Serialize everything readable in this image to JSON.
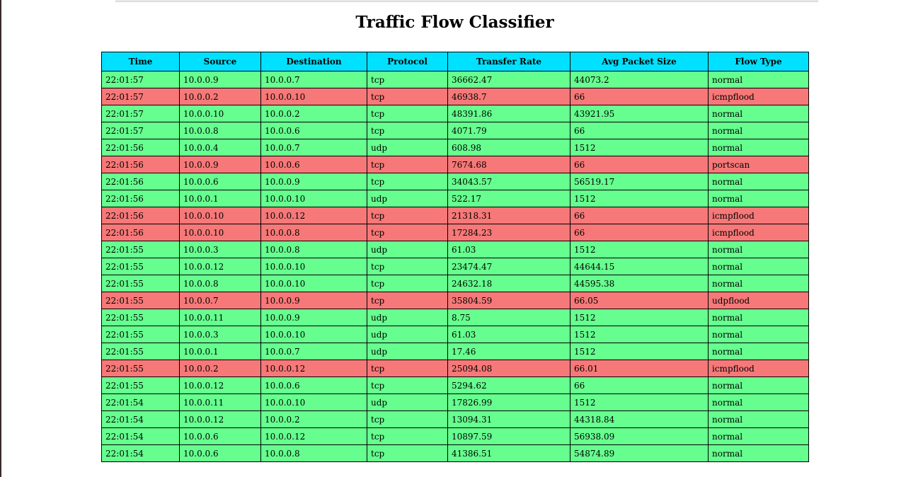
{
  "page": {
    "title": "Traffic Flow Classifier"
  },
  "colors": {
    "header": "#00e1ff",
    "normal_row": "#66ff8f",
    "attack_row": "#f67878"
  },
  "table": {
    "columns": [
      "Time",
      "Source",
      "Destination",
      "Protocol",
      "Transfer Rate",
      "Avg Packet Size",
      "Flow Type"
    ],
    "rows": [
      [
        "22:01:57",
        "10.0.0.9",
        "10.0.0.7",
        "tcp",
        "36662.47",
        "44073.2",
        "normal"
      ],
      [
        "22:01:57",
        "10.0.0.2",
        "10.0.0.10",
        "tcp",
        "46938.7",
        "66",
        "icmpflood"
      ],
      [
        "22:01:57",
        "10.0.0.10",
        "10.0.0.2",
        "tcp",
        "48391.86",
        "43921.95",
        "normal"
      ],
      [
        "22:01:57",
        "10.0.0.8",
        "10.0.0.6",
        "tcp",
        "4071.79",
        "66",
        "normal"
      ],
      [
        "22:01:56",
        "10.0.0.4",
        "10.0.0.7",
        "udp",
        "608.98",
        "1512",
        "normal"
      ],
      [
        "22:01:56",
        "10.0.0.9",
        "10.0.0.6",
        "tcp",
        "7674.68",
        "66",
        "portscan"
      ],
      [
        "22:01:56",
        "10.0.0.6",
        "10.0.0.9",
        "tcp",
        "34043.57",
        "56519.17",
        "normal"
      ],
      [
        "22:01:56",
        "10.0.0.1",
        "10.0.0.10",
        "udp",
        "522.17",
        "1512",
        "normal"
      ],
      [
        "22:01:56",
        "10.0.0.10",
        "10.0.0.12",
        "tcp",
        "21318.31",
        "66",
        "icmpflood"
      ],
      [
        "22:01:56",
        "10.0.0.10",
        "10.0.0.8",
        "tcp",
        "17284.23",
        "66",
        "icmpflood"
      ],
      [
        "22:01:55",
        "10.0.0.3",
        "10.0.0.8",
        "udp",
        "61.03",
        "1512",
        "normal"
      ],
      [
        "22:01:55",
        "10.0.0.12",
        "10.0.0.10",
        "tcp",
        "23474.47",
        "44644.15",
        "normal"
      ],
      [
        "22:01:55",
        "10.0.0.8",
        "10.0.0.10",
        "tcp",
        "24632.18",
        "44595.38",
        "normal"
      ],
      [
        "22:01:55",
        "10.0.0.7",
        "10.0.0.9",
        "tcp",
        "35804.59",
        "66.05",
        "udpflood"
      ],
      [
        "22:01:55",
        "10.0.0.11",
        "10.0.0.9",
        "udp",
        "8.75",
        "1512",
        "normal"
      ],
      [
        "22:01:55",
        "10.0.0.3",
        "10.0.0.10",
        "udp",
        "61.03",
        "1512",
        "normal"
      ],
      [
        "22:01:55",
        "10.0.0.1",
        "10.0.0.7",
        "udp",
        "17.46",
        "1512",
        "normal"
      ],
      [
        "22:01:55",
        "10.0.0.2",
        "10.0.0.12",
        "tcp",
        "25094.08",
        "66.01",
        "icmpflood"
      ],
      [
        "22:01:55",
        "10.0.0.12",
        "10.0.0.6",
        "tcp",
        "5294.62",
        "66",
        "normal"
      ],
      [
        "22:01:54",
        "10.0.0.11",
        "10.0.0.10",
        "udp",
        "17826.99",
        "1512",
        "normal"
      ],
      [
        "22:01:54",
        "10.0.0.12",
        "10.0.0.2",
        "tcp",
        "13094.31",
        "44318.84",
        "normal"
      ],
      [
        "22:01:54",
        "10.0.0.6",
        "10.0.0.12",
        "tcp",
        "10897.59",
        "56938.09",
        "normal"
      ],
      [
        "22:01:54",
        "10.0.0.6",
        "10.0.0.8",
        "tcp",
        "41386.51",
        "54874.89",
        "normal"
      ]
    ]
  }
}
